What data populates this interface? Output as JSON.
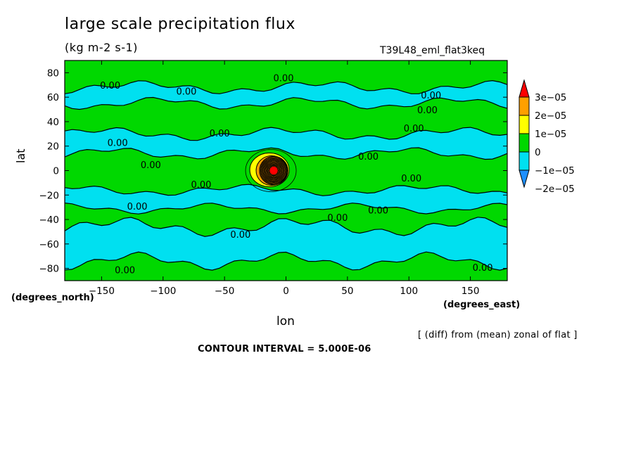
{
  "chart_data": {
    "type": "heatmap",
    "title": "large scale precipitation flux",
    "units": "(kg m-2 s-1)",
    "run_id": "T39L48_eml_flat3keq",
    "xlabel": "lon",
    "ylabel": "lat",
    "x_unit_note": "(degrees_east)",
    "y_unit_note": "(degrees_north)",
    "xlim": [
      -180,
      180
    ],
    "ylim": [
      -90,
      90
    ],
    "x_ticks": [
      -150,
      -100,
      -50,
      0,
      50,
      100,
      150
    ],
    "y_ticks": [
      -80,
      -60,
      -40,
      -20,
      0,
      20,
      40,
      60,
      80
    ],
    "x_tick_labels": [
      "−150",
      "−100",
      "−50",
      "0",
      "50",
      "100",
      "150"
    ],
    "y_tick_labels": [
      "−80",
      "−60",
      "−40",
      "−20",
      "0",
      "20",
      "40",
      "60",
      "80"
    ],
    "colorbar": {
      "levels": [
        "−2e−05",
        "−1e−05",
        "0",
        "1e−05",
        "2e−05",
        "3e−05"
      ],
      "colors": [
        "#1e90ff",
        "#00e0f0",
        "#00d800",
        "#ffff00",
        "#ffa000",
        "#ff0000"
      ]
    },
    "contour_labels": [
      "0.00"
    ],
    "contour_interval": "CONTOUR INTERVAL = 5.000E-06",
    "footnote": "[ (diff) from (mean) zonal of flat ]",
    "anomaly_center": {
      "lon": -10,
      "lat": 0
    },
    "lat_bands": [
      {
        "lat": [
          62,
          90
        ],
        "sign": "+"
      },
      {
        "lat": [
          55,
          68
        ],
        "sign": "-"
      },
      {
        "lat": [
          30,
          55
        ],
        "sign": "+"
      },
      {
        "lat": [
          12,
          30
        ],
        "sign": "-"
      },
      {
        "lat": [
          -15,
          12
        ],
        "sign": "+"
      },
      {
        "lat": [
          -32,
          -15
        ],
        "sign": "-"
      },
      {
        "lat": [
          -45,
          -32
        ],
        "sign": "+"
      },
      {
        "lat": [
          -75,
          -45
        ],
        "sign": "-"
      },
      {
        "lat": [
          -90,
          -75
        ],
        "sign": "+"
      }
    ]
  }
}
